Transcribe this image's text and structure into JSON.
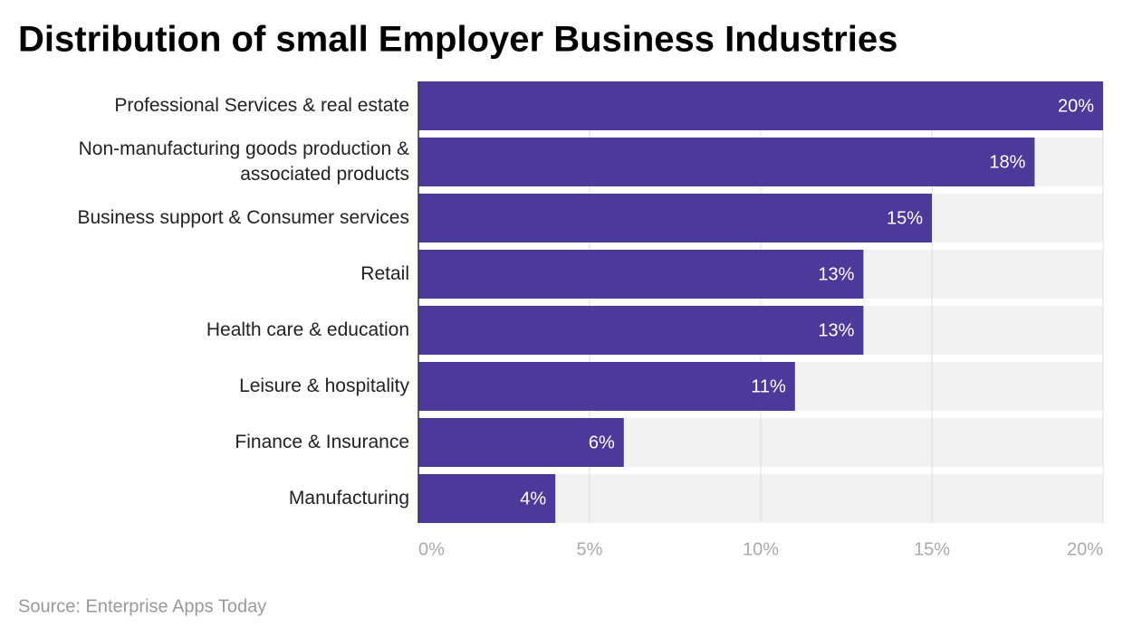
{
  "chart_data": {
    "type": "bar",
    "orientation": "horizontal",
    "title": "Distribution of small Employer Business Industries",
    "source": "Source: Enterprise Apps Today",
    "categories": [
      "Professional Services & real estate",
      "Non-manufacturing goods production & associated products",
      "Business support & Consumer services",
      "Retail",
      "Health care & education",
      "Leisure & hospitality",
      "Finance & Insurance",
      "Manufacturing"
    ],
    "values": [
      20,
      18,
      15,
      13,
      13,
      11,
      6,
      4
    ],
    "value_labels": [
      "20%",
      "18%",
      "15%",
      "13%",
      "13%",
      "11%",
      "6%",
      "4%"
    ],
    "color": "#4b3a99",
    "xlim": [
      0,
      20
    ],
    "xticks": [
      {
        "value": 0,
        "label": "0%"
      },
      {
        "value": 5,
        "label": "5%"
      },
      {
        "value": 10,
        "label": "10%"
      },
      {
        "value": 15,
        "label": "15%"
      },
      {
        "value": 20,
        "label": "20%"
      }
    ],
    "grid": true
  }
}
